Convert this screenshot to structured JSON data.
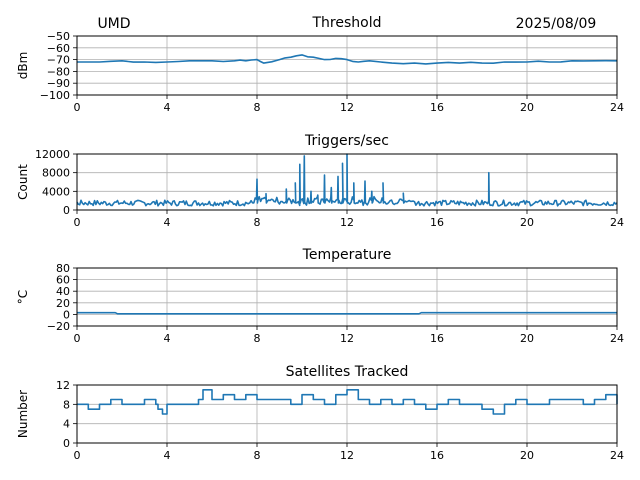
{
  "header": {
    "station": "UMD",
    "date": "2025/08/09"
  },
  "chart_data": [
    {
      "type": "line",
      "title": "Threshold",
      "xlabel": "",
      "ylabel": "dBm",
      "xlim": [
        0,
        24
      ],
      "ylim": [
        -100,
        -50
      ],
      "xticks": [
        0,
        4,
        8,
        12,
        16,
        20,
        24
      ],
      "yticks": [
        -50,
        -60,
        -70,
        -80,
        -90,
        -100
      ],
      "ytick_labels": [
        "−50",
        "−60",
        "−70",
        "−80",
        "−90",
        "−100"
      ],
      "grid": true,
      "color": "#1f77b4",
      "series": [
        {
          "x": [
            0,
            1,
            2,
            3,
            4,
            5,
            6,
            7,
            7.5,
            8,
            8.3,
            9,
            9.5,
            10,
            10.5,
            11,
            11.5,
            12,
            12.5,
            13,
            14,
            15,
            16,
            17,
            18,
            19,
            20,
            21,
            22,
            23,
            24
          ],
          "values": [
            -72,
            -72,
            -71,
            -72,
            -72,
            -71,
            -71,
            -71,
            -71,
            -70,
            -73,
            -70,
            -68,
            -66,
            -68,
            -70,
            -69,
            -70,
            -72,
            -71,
            -73,
            -73,
            -73,
            -73,
            -73,
            -72,
            -72,
            -72,
            -71,
            -71,
            -71
          ]
        }
      ]
    },
    {
      "type": "line",
      "title": "Triggers/sec",
      "xlabel": "",
      "ylabel": "Count",
      "xlim": [
        0,
        24
      ],
      "ylim": [
        0,
        12000
      ],
      "xticks": [
        0,
        4,
        8,
        12,
        16,
        20,
        24
      ],
      "yticks": [
        0,
        4000,
        8000,
        12000
      ],
      "ytick_labels": [
        "0",
        "4000",
        "8000",
        "12000"
      ],
      "grid": true,
      "color": "#1f77b4",
      "baseline": 1500,
      "spikes": [
        {
          "x": 8.0,
          "value": 6600
        },
        {
          "x": 8.4,
          "value": 3500
        },
        {
          "x": 9.3,
          "value": 4500
        },
        {
          "x": 9.7,
          "value": 5800
        },
        {
          "x": 9.9,
          "value": 9800
        },
        {
          "x": 10.1,
          "value": 11600
        },
        {
          "x": 10.4,
          "value": 4000
        },
        {
          "x": 10.7,
          "value": 3200
        },
        {
          "x": 11.0,
          "value": 7500
        },
        {
          "x": 11.3,
          "value": 4800
        },
        {
          "x": 11.6,
          "value": 7200
        },
        {
          "x": 11.8,
          "value": 10000
        },
        {
          "x": 12.0,
          "value": 12000
        },
        {
          "x": 12.3,
          "value": 5800
        },
        {
          "x": 12.8,
          "value": 6200
        },
        {
          "x": 13.1,
          "value": 4000
        },
        {
          "x": 13.6,
          "value": 5800
        },
        {
          "x": 14.5,
          "value": 3600
        },
        {
          "x": 18.3,
          "value": 8000
        }
      ]
    },
    {
      "type": "line",
      "title": "Temperature",
      "xlabel": "",
      "ylabel": "°C",
      "xlim": [
        0,
        24
      ],
      "ylim": [
        -20,
        80
      ],
      "xticks": [
        0,
        4,
        8,
        12,
        16,
        20,
        24
      ],
      "yticks": [
        -20,
        0,
        20,
        40,
        60,
        80
      ],
      "ytick_labels": [
        "−20",
        "0",
        "20",
        "40",
        "60",
        "80"
      ],
      "grid": true,
      "color": "#1f77b4",
      "series": [
        {
          "x": [
            0,
            1.7,
            1.8,
            15.2,
            15.3,
            24
          ],
          "values": [
            3,
            3,
            1,
            1,
            3,
            3
          ]
        }
      ]
    },
    {
      "type": "line",
      "title": "Satellites Tracked",
      "xlabel": "",
      "ylabel": "Number",
      "xlim": [
        0,
        24
      ],
      "ylim": [
        0,
        12
      ],
      "xticks": [
        0,
        4,
        8,
        12,
        16,
        20,
        24
      ],
      "yticks": [
        0,
        4,
        8,
        12
      ],
      "ytick_labels": [
        "0",
        "4",
        "8",
        "12"
      ],
      "grid": true,
      "color": "#1f77b4",
      "series": [
        {
          "x": [
            0,
            0.5,
            1,
            1.5,
            2,
            2.5,
            3,
            3.5,
            3.6,
            3.8,
            4,
            5,
            5.4,
            5.6,
            6,
            6.5,
            7,
            7.5,
            8,
            9,
            9.5,
            10,
            10.5,
            11,
            11.5,
            12,
            12.5,
            13,
            13.5,
            14,
            14.5,
            15,
            15.5,
            16,
            16.5,
            17,
            17.5,
            18,
            18.5,
            19,
            19.5,
            20,
            20.5,
            21,
            21.5,
            22,
            22.5,
            23,
            23.5,
            24
          ],
          "values": [
            8,
            7,
            8,
            9,
            8,
            8,
            9,
            8,
            7,
            6,
            8,
            8,
            9,
            11,
            9,
            10,
            9,
            10,
            9,
            9,
            8,
            10,
            9,
            8,
            10,
            11,
            9,
            8,
            9,
            8,
            9,
            8,
            7,
            8,
            9,
            8,
            8,
            7,
            6,
            8,
            9,
            8,
            8,
            9,
            9,
            9,
            8,
            9,
            10,
            8
          ]
        }
      ]
    }
  ]
}
